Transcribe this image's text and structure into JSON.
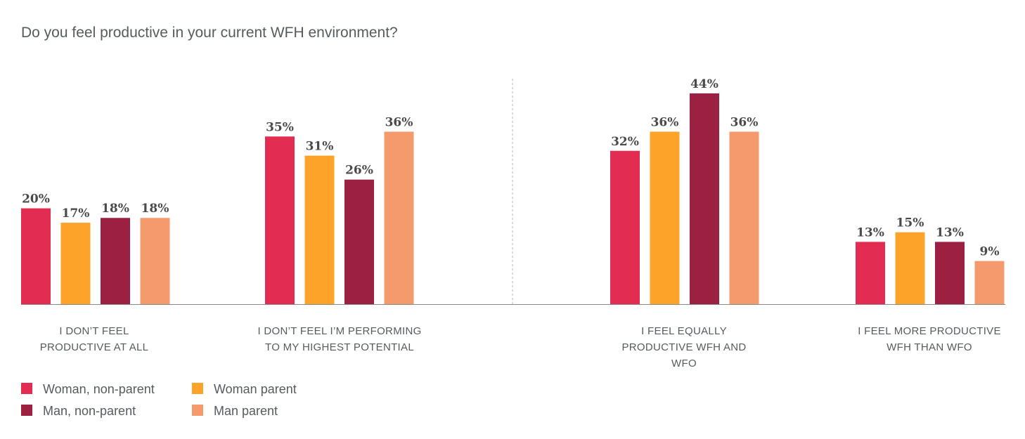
{
  "chart_data": {
    "type": "bar",
    "title": "Do you feel productive in your current WFH environment?",
    "categories": [
      [
        "I DON’T FEEL",
        "PRODUCTIVE AT ALL"
      ],
      [
        "I DON’T FEEL I’M PERFORMING",
        "TO MY HIGHEST POTENTIAL"
      ],
      [
        "I FEEL EQUALLY",
        "PRODUCTIVE WFH AND",
        "WFO"
      ],
      [
        "I FEEL MORE PRODUCTIVE",
        "WFH THAN WFO"
      ]
    ],
    "series": [
      {
        "name": "Woman, non-parent",
        "color": "#e32c52",
        "values": [
          20,
          35,
          32,
          13
        ]
      },
      {
        "name": "Woman parent",
        "color": "#fea32a",
        "values": [
          17,
          31,
          36,
          15
        ]
      },
      {
        "name": "Man, non-parent",
        "color": "#9b2042",
        "values": [
          18,
          26,
          44,
          13
        ]
      },
      {
        "name": "Man parent",
        "color": "#f59a6c",
        "values": [
          18,
          36,
          36,
          9
        ]
      }
    ],
    "value_suffix": "%",
    "ylim": [
      0,
      44
    ],
    "grid": false,
    "legend_position": "bottom-left",
    "divider": "dashed line between second and third category groups"
  }
}
